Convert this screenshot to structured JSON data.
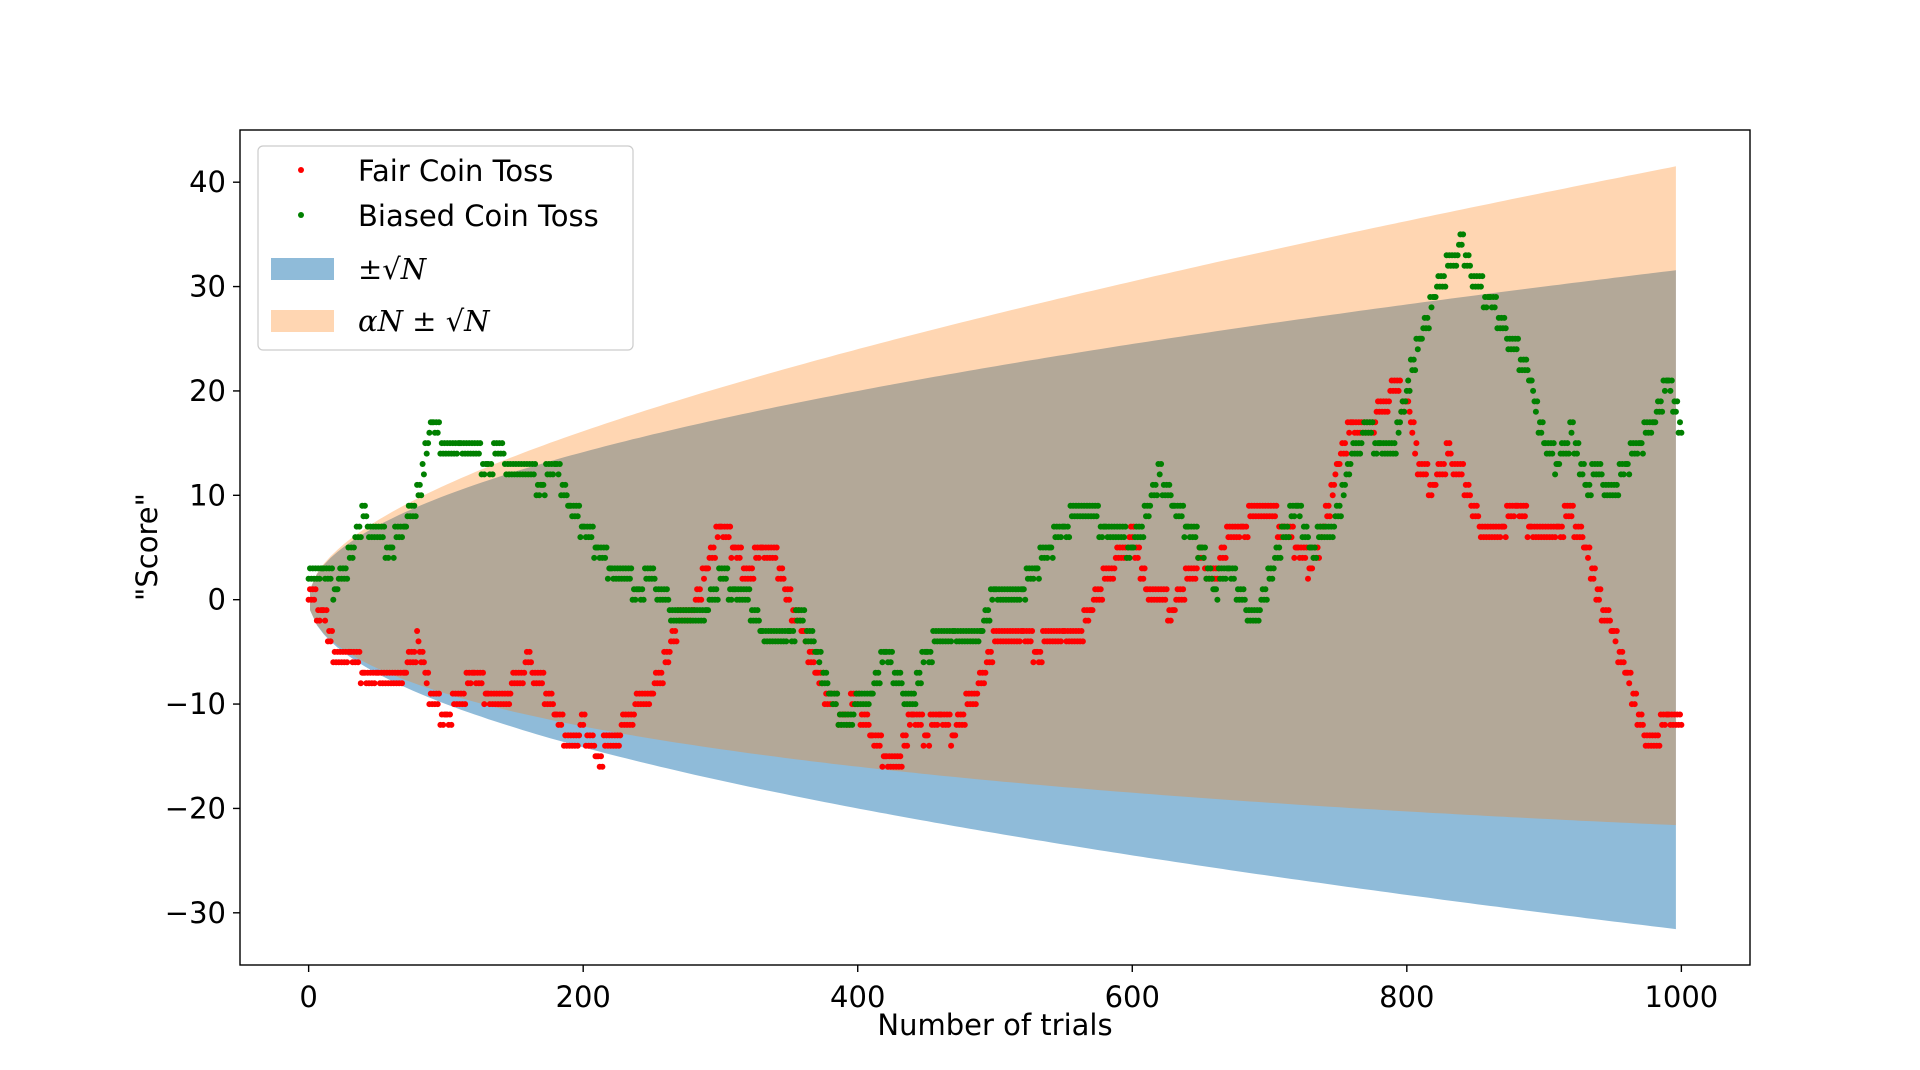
{
  "chart_data": {
    "type": "scatter",
    "title": "",
    "xlabel": "Number of trials",
    "ylabel": "\"Score\"",
    "xlim": [
      -50,
      1050
    ],
    "ylim": [
      -35,
      45
    ],
    "xticks": [
      0,
      200,
      400,
      600,
      800,
      1000
    ],
    "yticks": [
      -30,
      -20,
      -10,
      0,
      10,
      20,
      30,
      40
    ],
    "ytick_labels": [
      "−30",
      "−20",
      "−10",
      "0",
      "10",
      "20",
      "30",
      "40"
    ],
    "grid": false,
    "legend_placement": "top-left",
    "alpha": 0.01,
    "bands": [
      {
        "name": "±√N",
        "formula": "±sqrt(N)",
        "color": "#1f77b4",
        "opacity": 0.5
      },
      {
        "name": "αN ± √N",
        "formula": "0.01*N ± sqrt(N)",
        "color": "#ff7f0e",
        "opacity": 0.32
      }
    ],
    "series": [
      {
        "name": "Fair Coin Toss",
        "color": "#ff0000",
        "marker": "dot",
        "x": [
          0,
          10,
          20,
          30,
          40,
          50,
          60,
          70,
          80,
          90,
          100,
          110,
          120,
          130,
          140,
          150,
          160,
          170,
          180,
          190,
          200,
          210,
          220,
          230,
          240,
          250,
          260,
          270,
          280,
          290,
          300,
          310,
          320,
          330,
          340,
          350,
          360,
          370,
          380,
          390,
          400,
          410,
          420,
          430,
          440,
          450,
          460,
          470,
          480,
          490,
          500,
          510,
          520,
          530,
          540,
          550,
          560,
          570,
          580,
          590,
          600,
          610,
          620,
          630,
          640,
          650,
          660,
          670,
          680,
          690,
          700,
          710,
          720,
          730,
          740,
          750,
          760,
          770,
          780,
          790,
          800,
          810,
          820,
          830,
          840,
          850,
          860,
          870,
          880,
          890,
          900,
          910,
          920,
          930,
          940,
          950,
          960,
          970,
          980,
          990,
          1000
        ],
        "y": [
          0,
          -1,
          -6,
          -5,
          -7,
          -7,
          -8,
          -7,
          -4,
          -10,
          -11,
          -10,
          -7,
          -9,
          -10,
          -8,
          -6,
          -8,
          -11,
          -14,
          -12,
          -15,
          -14,
          -12,
          -10,
          -9,
          -6,
          -2,
          -1,
          3,
          7,
          5,
          2,
          5,
          4,
          0,
          -3,
          -7,
          -10,
          -11,
          -10,
          -13,
          -15,
          -16,
          -11,
          -13,
          -11,
          -13,
          -10,
          -8,
          -4,
          -4,
          -3,
          -5,
          -4,
          -3,
          -4,
          -1,
          2,
          4,
          6,
          1,
          0,
          -1,
          2,
          4,
          2,
          6,
          7,
          8,
          8,
          7,
          5,
          3,
          7,
          13,
          17,
          16,
          18,
          20,
          19,
          12,
          11,
          14,
          12,
          8,
          6,
          7,
          9,
          7,
          6,
          7,
          8,
          5,
          0,
          -3,
          -7,
          -12,
          -14,
          -11,
          -12
        ]
      },
      {
        "name": "Biased Coin Toss",
        "color": "#008000",
        "marker": "dot",
        "x": [
          0,
          10,
          20,
          30,
          40,
          50,
          60,
          70,
          80,
          90,
          100,
          110,
          120,
          130,
          140,
          150,
          160,
          170,
          180,
          190,
          200,
          210,
          220,
          230,
          240,
          250,
          260,
          270,
          280,
          290,
          300,
          310,
          320,
          330,
          340,
          350,
          360,
          370,
          380,
          390,
          400,
          410,
          420,
          430,
          440,
          450,
          460,
          470,
          480,
          490,
          500,
          510,
          520,
          530,
          540,
          550,
          560,
          570,
          580,
          590,
          600,
          610,
          620,
          630,
          640,
          650,
          660,
          670,
          680,
          690,
          700,
          710,
          720,
          730,
          740,
          750,
          760,
          770,
          780,
          790,
          800,
          810,
          820,
          830,
          840,
          850,
          860,
          870,
          880,
          890,
          900,
          910,
          920,
          930,
          940,
          950,
          960,
          970,
          980,
          990,
          1000
        ],
        "y": [
          2,
          3,
          1,
          4,
          8,
          6,
          5,
          7,
          10,
          17,
          14,
          15,
          14,
          13,
          14,
          12,
          12,
          11,
          13,
          9,
          7,
          5,
          3,
          2,
          1,
          2,
          0,
          -2,
          -2,
          -1,
          2,
          1,
          0,
          -3,
          -4,
          -3,
          -2,
          -5,
          -9,
          -12,
          -10,
          -9,
          -5,
          -8,
          -10,
          -5,
          -4,
          -3,
          -4,
          -3,
          1,
          0,
          1,
          3,
          5,
          7,
          8,
          8,
          7,
          6,
          5,
          8,
          12,
          9,
          7,
          5,
          1,
          3,
          0,
          -2,
          2,
          6,
          9,
          5,
          6,
          8,
          14,
          16,
          15,
          14,
          20,
          25,
          29,
          32,
          34,
          30,
          29,
          26,
          24,
          21,
          15,
          13,
          16,
          11,
          12,
          10,
          13,
          15,
          17,
          21,
          16
        ]
      }
    ]
  }
}
